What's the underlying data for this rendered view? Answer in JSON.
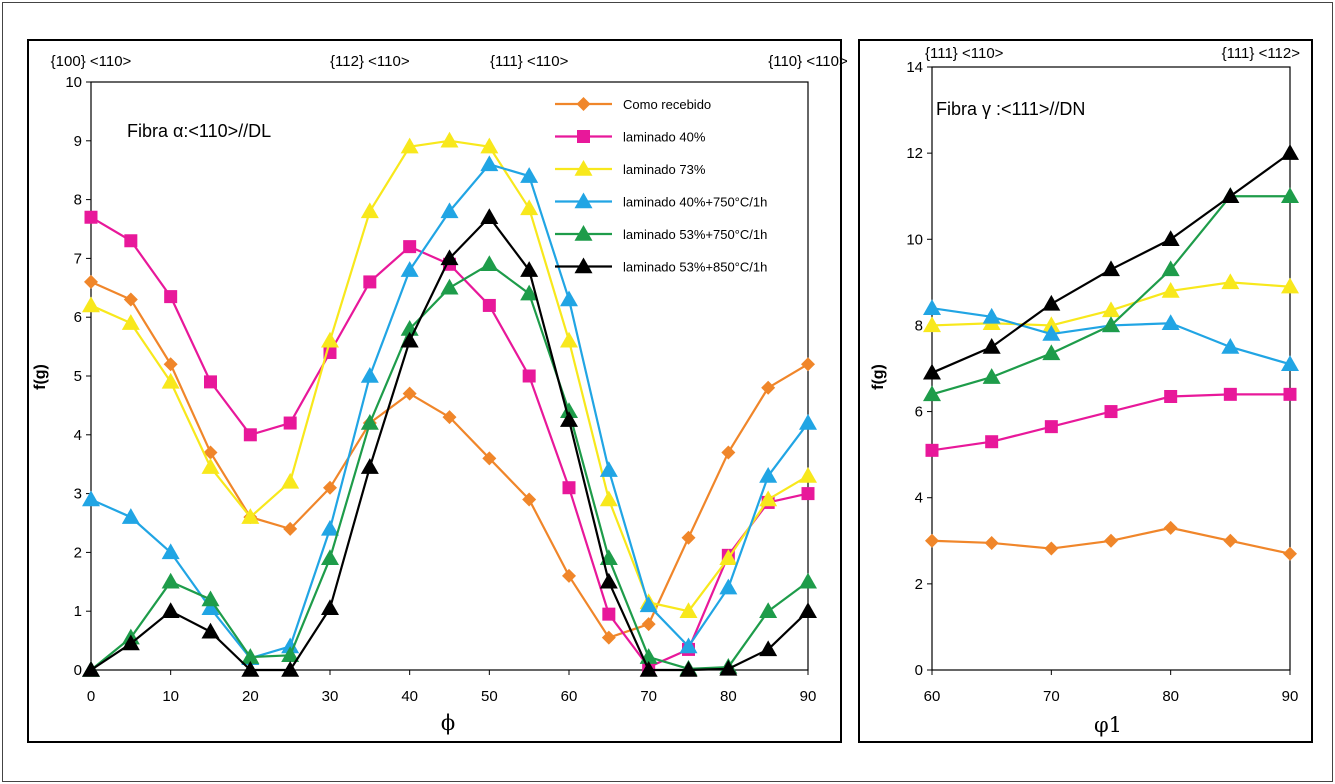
{
  "chart_data": [
    {
      "type": "line",
      "annotation": "Fibra α:<110>//DL",
      "xlabel": "ϕ",
      "ylabel": "f(g)",
      "xlim": [
        0,
        90
      ],
      "ylim": [
        0,
        10
      ],
      "x_ticks": [
        "0",
        "10",
        "20",
        "30",
        "40",
        "50",
        "60",
        "70",
        "80",
        "90"
      ],
      "y_ticks": [
        "0",
        "1",
        "2",
        "3",
        "4",
        "5",
        "6",
        "7",
        "8",
        "9",
        "10"
      ],
      "top_labels": [
        {
          "x": 0,
          "text": "{100} <110>"
        },
        {
          "x": 35,
          "text": "{112} <110>"
        },
        {
          "x": 55,
          "text": "{111} <110>"
        },
        {
          "x": 90,
          "text": "{110} <110>"
        }
      ],
      "legend_position": "top-right",
      "x": [
        0,
        5,
        10,
        15,
        20,
        25,
        30,
        35,
        40,
        45,
        50,
        55,
        60,
        65,
        70,
        75,
        80,
        85,
        90
      ],
      "series": [
        {
          "name": "Como recebido",
          "color": "#f0862a",
          "marker": "diamond",
          "values": [
            6.6,
            6.3,
            5.2,
            3.7,
            2.6,
            2.4,
            3.1,
            4.2,
            4.7,
            4.3,
            3.6,
            2.9,
            1.6,
            0.55,
            0.78,
            2.25,
            3.7,
            4.8,
            5.2
          ]
        },
        {
          "name": "laminado 40%",
          "color": "#e8189a",
          "marker": "square",
          "values": [
            7.7,
            7.3,
            6.35,
            4.9,
            4.0,
            4.2,
            5.4,
            6.6,
            7.2,
            6.9,
            6.2,
            5.0,
            3.1,
            0.95,
            0.05,
            0.35,
            1.95,
            2.85,
            3.0
          ]
        },
        {
          "name": "laminado 73%",
          "color": "#f8e81c",
          "marker": "triangle",
          "values": [
            6.2,
            5.9,
            4.9,
            3.45,
            2.6,
            3.2,
            5.6,
            7.8,
            8.9,
            9.0,
            8.9,
            7.85,
            5.6,
            2.9,
            1.15,
            1.0,
            1.9,
            2.9,
            3.3
          ]
        },
        {
          "name": "laminado 40%+750°C/1h",
          "color": "#21a5e4",
          "marker": "triangle",
          "values": [
            2.9,
            2.6,
            2.0,
            1.05,
            0.2,
            0.4,
            2.4,
            5.0,
            6.8,
            7.8,
            8.6,
            8.4,
            6.3,
            3.4,
            1.1,
            0.4,
            1.4,
            3.3,
            4.2
          ]
        },
        {
          "name": "laminado 53%+750°C/1h",
          "color": "#1e9c4a",
          "marker": "triangle",
          "values": [
            0.0,
            0.55,
            1.5,
            1.2,
            0.22,
            0.25,
            1.9,
            4.2,
            5.8,
            6.5,
            6.9,
            6.4,
            4.4,
            1.9,
            0.22,
            0.02,
            0.05,
            1.0,
            1.5
          ]
        },
        {
          "name": "laminado 53%+850°C/1h",
          "color": "#000000",
          "marker": "triangle",
          "values": [
            0.0,
            0.45,
            1.0,
            0.65,
            0.0,
            0.0,
            1.05,
            3.45,
            5.6,
            7.0,
            7.7,
            6.8,
            4.25,
            1.5,
            0.0,
            0.0,
            0.02,
            0.35,
            1.0
          ]
        }
      ]
    },
    {
      "type": "line",
      "annotation": "Fibra γ :<111>//DN",
      "xlabel": "φ1",
      "ylabel": "f(g)",
      "xlim": [
        60,
        90
      ],
      "ylim": [
        0,
        14
      ],
      "x_ticks": [
        "60",
        "70",
        "80",
        "90"
      ],
      "y_ticks": [
        "0",
        "2",
        "4",
        "6",
        "8",
        "10",
        "12",
        "14"
      ],
      "top_labels": [
        {
          "x": 60,
          "text": "{111} <110>"
        },
        {
          "x": 90,
          "text": "{111} <112>"
        }
      ],
      "x": [
        60,
        65,
        70,
        75,
        80,
        85,
        90
      ],
      "series": [
        {
          "name": "Como recebido",
          "color": "#f0862a",
          "marker": "diamond",
          "values": [
            3.0,
            2.95,
            2.82,
            3.0,
            3.3,
            3.0,
            2.7
          ]
        },
        {
          "name": "laminado 40%",
          "color": "#e8189a",
          "marker": "square",
          "values": [
            5.1,
            5.3,
            5.65,
            6.0,
            6.35,
            6.4,
            6.4
          ]
        },
        {
          "name": "laminado 73%",
          "color": "#f8e81c",
          "marker": "triangle",
          "values": [
            8.0,
            8.05,
            8.0,
            8.35,
            8.8,
            9.0,
            8.9
          ]
        },
        {
          "name": "laminado 40%+750°C/1h",
          "color": "#21a5e4",
          "marker": "triangle",
          "values": [
            8.4,
            8.2,
            7.8,
            8.0,
            8.05,
            7.5,
            7.1
          ]
        },
        {
          "name": "laminado 53%+750°C/1h",
          "color": "#1e9c4a",
          "marker": "triangle",
          "values": [
            6.4,
            6.8,
            7.35,
            8.0,
            9.3,
            11.0,
            11.0
          ]
        },
        {
          "name": "laminado 53%+850°C/1h",
          "color": "#000000",
          "marker": "triangle",
          "values": [
            6.9,
            7.5,
            8.5,
            9.3,
            10.0,
            11.0,
            12.0
          ]
        }
      ]
    }
  ]
}
